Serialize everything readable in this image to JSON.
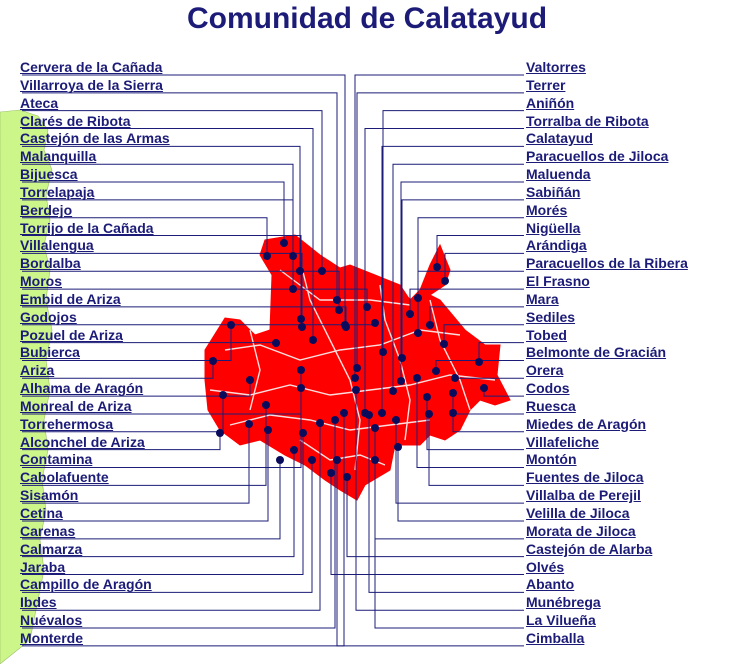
{
  "title": "Comunidad de Calatayud",
  "colors": {
    "region": "#ff0000",
    "neighbor": "#ccf58a",
    "label": "#1c1c78",
    "dot": "#0b0b5c",
    "border": "#ffffff"
  },
  "left_municipalities": [
    "Cervera de la Cañada",
    "Villarroya de la Sierra",
    "Ateca",
    "Clarés de Ribota",
    "Castejón de las Armas",
    "Malanquilla",
    "Bijuesca",
    "Torrelapaja",
    "Berdejo",
    "Torrijo de la Cañada",
    "Villalengua",
    "Bordalba",
    "Moros",
    "Embid de Ariza",
    "Godojos",
    "Pozuel de Ariza",
    "Bubierca",
    "Ariza",
    "Alhama de Aragón",
    "Monreal de Ariza",
    "Torrehermosa",
    "Alconchel de Ariza",
    "Contamina",
    "Cabolafuente",
    "Sisamón",
    "Cetina",
    "Carenas",
    "Calmarza",
    "Jaraba",
    "Campillo de Aragón",
    "Ibdes",
    "Nuévalos",
    "Monterde"
  ],
  "right_municipalities": [
    "Valtorres",
    "Terrer",
    "Aniñón",
    "Torralba de Ribota",
    "Calatayud",
    "Paracuellos de Jiloca",
    "Maluenda",
    "Sabiñán",
    "Morés",
    "Nigüella",
    "Arándiga",
    "Paracuellos de la Ribera",
    "El Frasno",
    "Mara",
    "Sediles",
    "Tobed",
    "Belmonte de Gracián",
    "Orera",
    "Codos",
    "Ruesca",
    "Miedes de Aragón",
    "Villafeliche",
    "Montón",
    "Fuentes de Jiloca",
    "Villalba de Perejil",
    "Velilla de Jiloca",
    "Morata de Jiloca",
    "Castejón de Alarba",
    "Olvés",
    "Abanto",
    "Munébrega",
    "La Vilueña",
    "Cimballa"
  ]
}
